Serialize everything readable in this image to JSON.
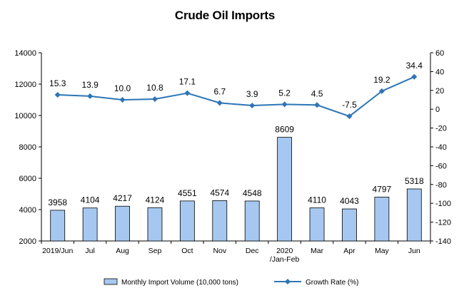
{
  "chart_data": {
    "type": "bar",
    "title": "Crude Oil Imports",
    "categories": [
      "2019/Jun",
      "Jul",
      "Aug",
      "Sep",
      "Oct",
      "Nov",
      "Dec",
      "2020\n/Jan-Feb",
      "Mar",
      "Apr",
      "May",
      "Jun"
    ],
    "series": [
      {
        "name": "Monthly Import Volume (10,000 tons)",
        "type": "bar",
        "axis": "left",
        "color": "#a6c8f0",
        "values": [
          3958,
          4104,
          4217,
          4124,
          4551,
          4574,
          4548,
          8609,
          4110,
          4043,
          4797,
          5318
        ]
      },
      {
        "name": "Growth Rate (%)",
        "type": "line",
        "axis": "right",
        "color": "#2e75b6",
        "values": [
          15.3,
          13.9,
          10.0,
          10.8,
          17.1,
          6.7,
          3.9,
          5.2,
          4.5,
          -7.5,
          19.2,
          34.4
        ]
      }
    ],
    "y_left": {
      "min": 2000,
      "max": 14000,
      "ticks": [
        2000,
        4000,
        6000,
        8000,
        10000,
        12000,
        14000
      ]
    },
    "y_right": {
      "min": -140,
      "max": 60,
      "ticks": [
        60,
        40,
        20,
        0,
        -20,
        -40,
        -60,
        -80,
        -100,
        -120,
        -140
      ]
    },
    "grid": false,
    "legend_position": "bottom"
  }
}
